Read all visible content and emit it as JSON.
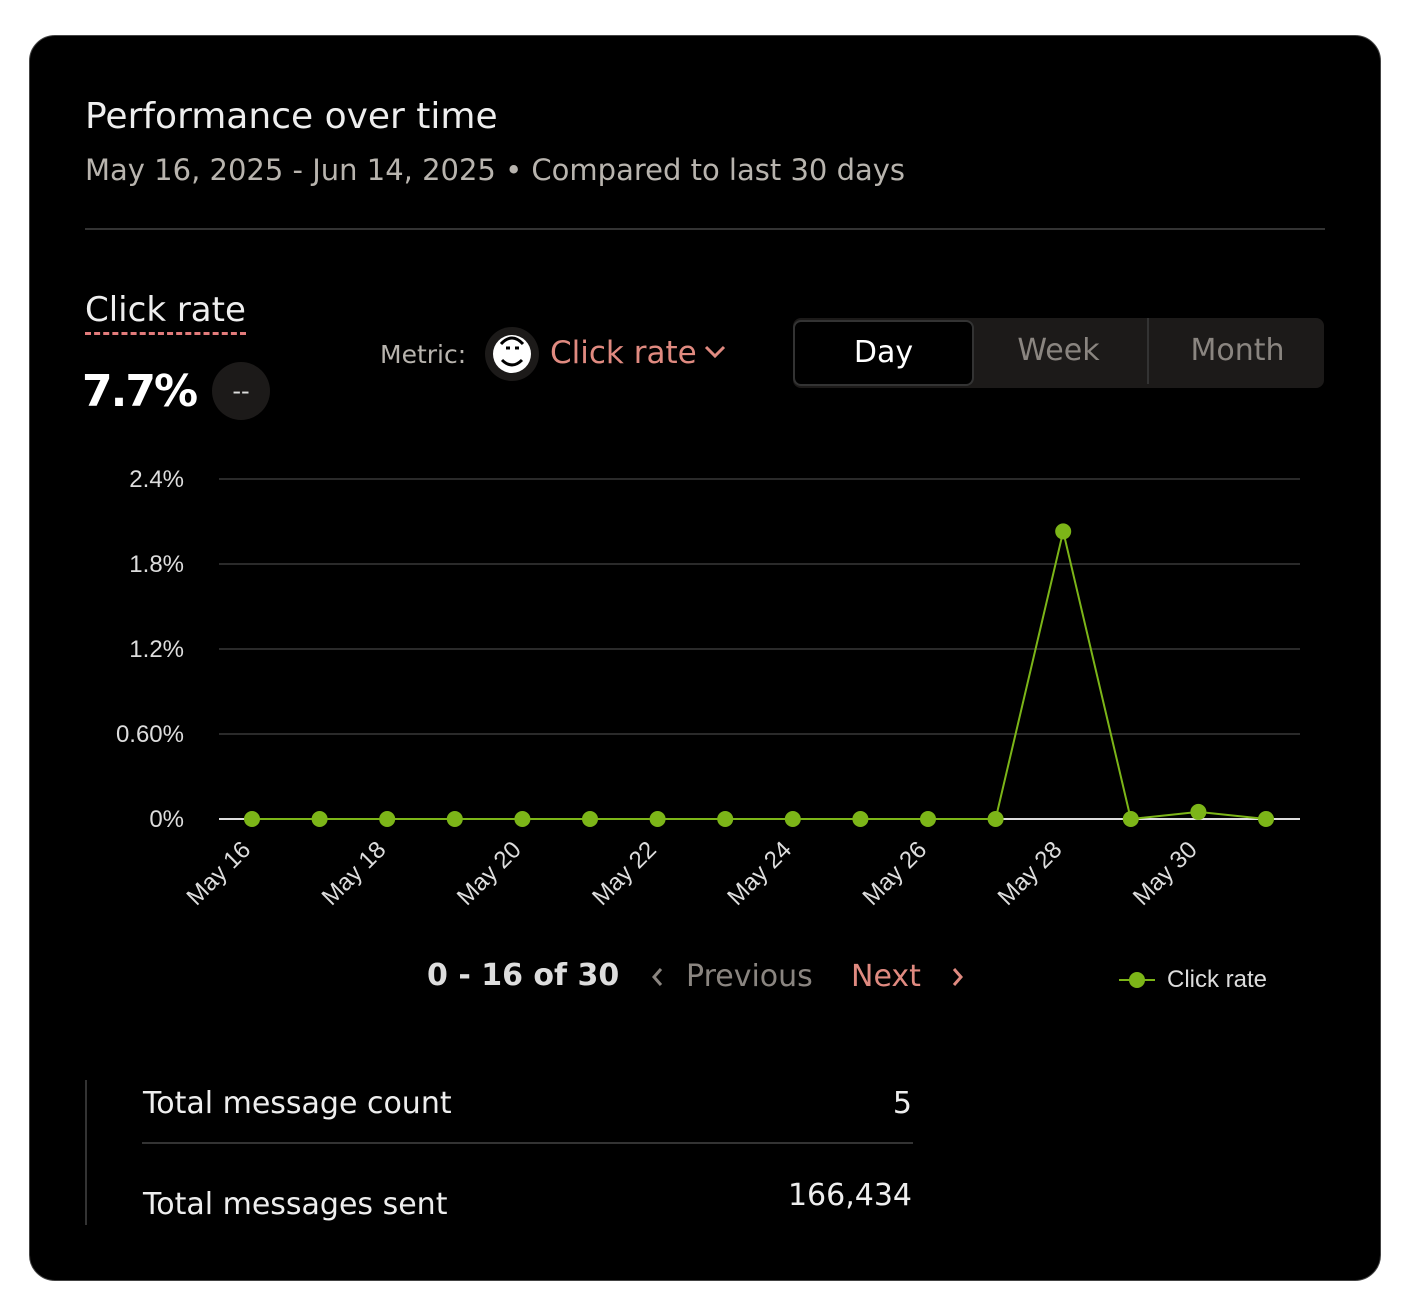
{
  "header": {
    "title": "Performance over time",
    "subtitle": "May 16, 2025 - Jun 14, 2025 • Compared to last 30 days"
  },
  "summary": {
    "label": "Click rate",
    "value": "7.7%",
    "change": "--"
  },
  "metric_selector": {
    "label": "Metric:",
    "selected": "Click rate"
  },
  "period_toggle": {
    "options": [
      "Day",
      "Week",
      "Month"
    ],
    "selected": "Day"
  },
  "chart_data": {
    "type": "line",
    "categories": [
      "May 16",
      null,
      "May 18",
      null,
      "May 20",
      null,
      "May 22",
      null,
      "May 24",
      null,
      "May 26",
      null,
      "May 28",
      null,
      "May 30",
      null
    ],
    "series": [
      {
        "name": "Click rate",
        "color": "#7cb518",
        "values": [
          0,
          0,
          0,
          0,
          0,
          0,
          0,
          0,
          0,
          0,
          0,
          0,
          2.03,
          0,
          0.05,
          0
        ]
      }
    ],
    "ylim": [
      0,
      2.4
    ],
    "yticks": [
      {
        "value": 0,
        "label": "0%"
      },
      {
        "value": 0.6,
        "label": "0.60%"
      },
      {
        "value": 1.2,
        "label": "1.2%"
      },
      {
        "value": 1.8,
        "label": "1.8%"
      },
      {
        "value": 2.4,
        "label": "2.4%"
      }
    ],
    "grid": true
  },
  "pagination": {
    "range": "0 - 16 of 30",
    "previous": "Previous",
    "next": "Next"
  },
  "table": {
    "rows": [
      [
        "Total message count",
        "5"
      ],
      [
        "Total messages sent",
        "166,434"
      ]
    ]
  }
}
